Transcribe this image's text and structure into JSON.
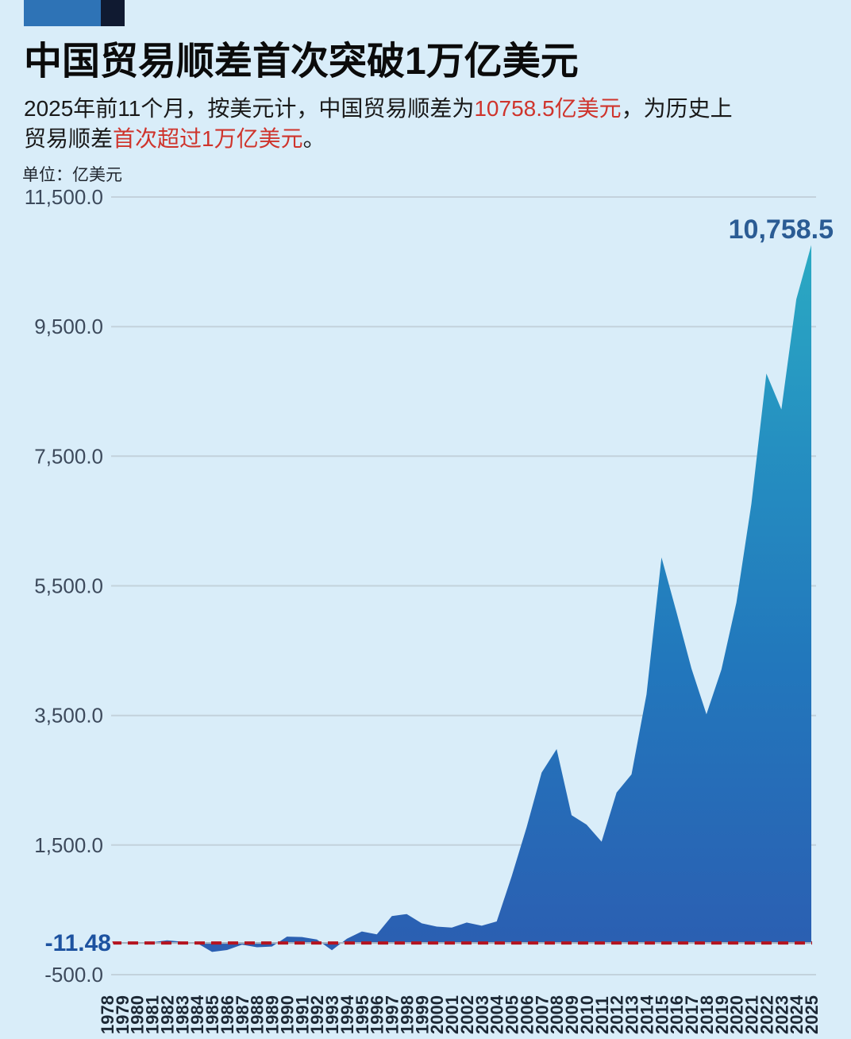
{
  "header": {
    "title": "中国贸易顺差首次突破1万亿美元",
    "subtitle_line1_pre": "2025年前11个月，按美元计，中国贸易顺差为",
    "subtitle_line1_red": "10758.5亿美元",
    "subtitle_line1_post": "，为历史上",
    "subtitle_line2_pre": "贸易顺差",
    "subtitle_line2_red": "首次超过1万亿美元",
    "subtitle_line2_post": "。",
    "unit_label": "单位：亿美元"
  },
  "logo": {
    "blue_color": "#2e73b6",
    "navy_color": "#101a31"
  },
  "chart_data": {
    "type": "area",
    "name": "中国贸易顺差",
    "title": "中国贸易顺差首次突破1万亿美元",
    "unit": "亿美元",
    "grid": true,
    "ylim": [
      -500,
      11500
    ],
    "x": [
      1978,
      1979,
      1980,
      1981,
      1982,
      1983,
      1984,
      1985,
      1986,
      1987,
      1988,
      1989,
      1990,
      1991,
      1992,
      1993,
      1994,
      1995,
      1996,
      1997,
      1998,
      1999,
      2000,
      2001,
      2002,
      2003,
      2004,
      2005,
      2006,
      2007,
      2008,
      2009,
      2010,
      2011,
      2012,
      2013,
      2014,
      2015,
      2016,
      2017,
      2018,
      2019,
      2020,
      2021,
      2022,
      2023,
      2024,
      2025
    ],
    "values": [
      -11.48,
      -20.1,
      -19.0,
      -0.1,
      30.4,
      8.4,
      -12.7,
      -149.0,
      -119.7,
      -37.7,
      -77.5,
      -66.0,
      87.5,
      81.2,
      43.5,
      -122.2,
      53.9,
      167.0,
      122.2,
      404.2,
      434.7,
      292.3,
      241.1,
      225.5,
      304.3,
      255.0,
      321.0,
      1020.1,
      1775.2,
      2618.3,
      2981.3,
      1961.1,
      1815.1,
      1551.4,
      2311.1,
      2590.1,
      3824.6,
      5939.0,
      5097.1,
      4225.0,
      3518.1,
      4210.7,
      5240.0,
      6764.3,
      8776.3,
      8221.0,
      9921.0,
      10758.5
    ],
    "y_ticks": [
      {
        "value": 11500,
        "label": "11,500.0"
      },
      {
        "value": 9500,
        "label": "9,500.0"
      },
      {
        "value": 7500,
        "label": "7,500.0"
      },
      {
        "value": 5500,
        "label": "5,500.0"
      },
      {
        "value": 3500,
        "label": "3,500.0"
      },
      {
        "value": 1500,
        "label": "1,500.0"
      },
      {
        "value": -500,
        "label": "-500.0"
      }
    ],
    "reference_line": {
      "value": -11.48,
      "label": "-11.48",
      "style": "dashed",
      "color": "#b5141f",
      "label_color": "#1d52a0"
    },
    "peak_annotation": {
      "year": 2025,
      "value": 10758.5,
      "label": "10,758.5",
      "label_color": "#2b5c94"
    },
    "area_gradient": [
      {
        "offset": "0%",
        "color": "#2baac3"
      },
      {
        "offset": "28%",
        "color": "#2590c1"
      },
      {
        "offset": "60%",
        "color": "#2277bc"
      },
      {
        "offset": "100%",
        "color": "#2b5fb2"
      }
    ],
    "legend_position": "none"
  }
}
